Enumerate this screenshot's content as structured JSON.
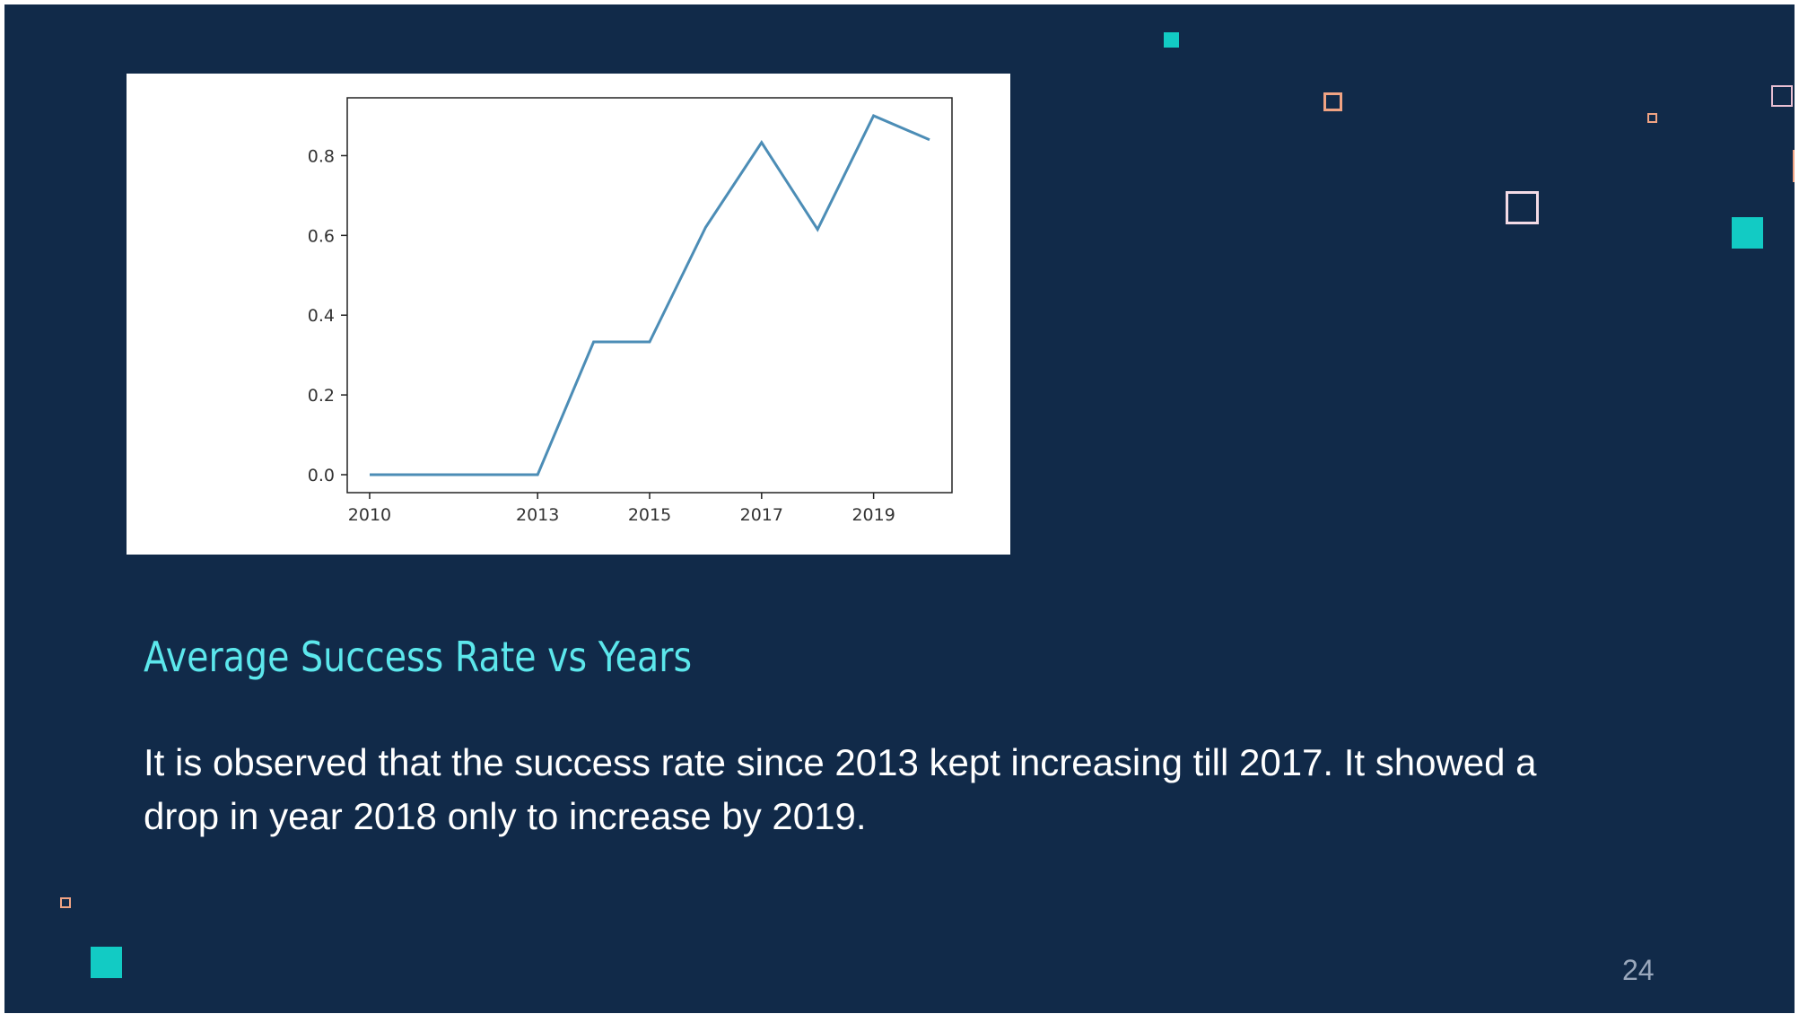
{
  "slide": {
    "title": "Average Success Rate vs Years",
    "body": "It is observed that the success rate since 2013 kept increasing till 2017. It showed a drop in year 2018 only to increase by 2019.",
    "page_number": "24"
  },
  "colors": {
    "background": "#112a49",
    "title": "#5ce7ec",
    "accent_cyan": "#12cbc4",
    "accent_salmon": "#f0a383",
    "line": "#4c8db6"
  },
  "chart_data": {
    "type": "line",
    "title": "",
    "xlabel": "",
    "ylabel": "",
    "x": [
      2010,
      2012,
      2013,
      2014,
      2015,
      2016,
      2017,
      2018,
      2019,
      2020
    ],
    "series": [
      {
        "values": [
          0.0,
          0.0,
          0.0,
          0.333,
          0.333,
          0.62,
          0.833,
          0.615,
          0.9,
          0.84
        ]
      }
    ],
    "x_ticks": [
      "2010",
      "2013",
      "2015",
      "2017",
      "2019"
    ],
    "y_ticks": [
      "0.0",
      "0.2",
      "0.4",
      "0.6",
      "0.8"
    ],
    "y_tick_values": [
      0.0,
      0.2,
      0.4,
      0.6,
      0.8
    ],
    "ylim": [
      -0.045,
      0.945
    ],
    "grid": false,
    "legend": "none"
  }
}
